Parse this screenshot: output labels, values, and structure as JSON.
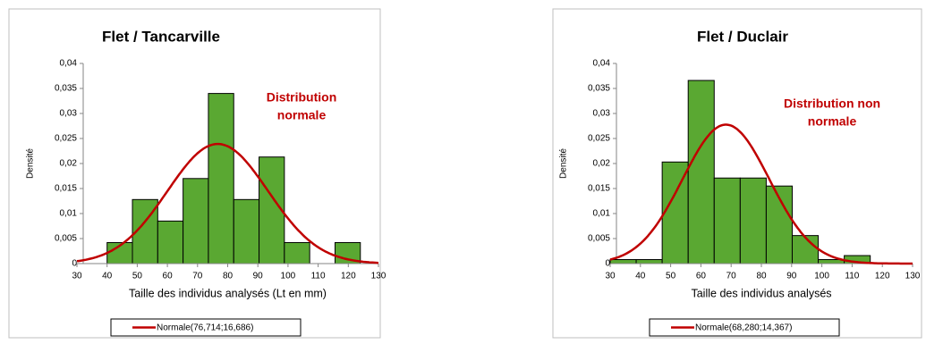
{
  "chart_data": [
    {
      "type": "histogram",
      "title": "Flet / Tancarville",
      "x_label": "Taille des individus analysés (Lt en mm)",
      "y_label": "Densité",
      "bins": [
        40,
        48.4,
        56.8,
        65.2,
        73.6,
        82,
        90.4,
        98.8,
        107.2,
        115.6,
        124
      ],
      "values": [
        0.0042,
        0.0128,
        0.0085,
        0.017,
        0.034,
        0.0128,
        0.0213,
        0.0042,
        0,
        0.0042
      ],
      "color": "#5aa832",
      "normal": {
        "name": "Normale(76,714;16,686)",
        "mean": 76.714,
        "sd": 16.686,
        "color": "#c00000"
      },
      "annotation": [
        "Distribution",
        "normale"
      ],
      "xlim": [
        30,
        130
      ],
      "xticks": [
        30,
        40,
        50,
        60,
        70,
        80,
        90,
        100,
        110,
        120,
        130
      ],
      "ylim": [
        0,
        0.04
      ],
      "yticks": [
        0,
        {
          "value": 0.005,
          "label": "0,005"
        },
        {
          "value": 0.01,
          "label": "0,01"
        },
        {
          "value": 0.015,
          "label": "0,015"
        },
        {
          "value": 0.02,
          "label": "0,02"
        },
        {
          "value": 0.025,
          "label": "0,025"
        },
        {
          "value": 0.03,
          "label": "0,03"
        },
        {
          "value": 0.035,
          "label": "0,035"
        },
        {
          "value": 0.04,
          "label": "0,04"
        }
      ]
    },
    {
      "type": "histogram",
      "title": "Flet / Duclair",
      "x_label": "Taille des individus analysés",
      "y_label": "Densité",
      "bins": [
        30,
        38.6,
        47.2,
        55.8,
        64.4,
        73,
        81.6,
        90.2,
        98.8,
        107.4,
        116
      ],
      "values": [
        0.0008,
        0.0008,
        0.0203,
        0.0366,
        0.0171,
        0.0171,
        0.0155,
        0.0056,
        0.0008,
        0.0016
      ],
      "color": "#5aa832",
      "normal": {
        "name": "Normale(68,280;14,367)",
        "mean": 68.28,
        "sd": 14.367,
        "color": "#c00000"
      },
      "annotation": [
        "Distribution non",
        "normale"
      ],
      "xlim": [
        30,
        130
      ],
      "xticks": [
        30,
        40,
        50,
        60,
        70,
        80,
        90,
        100,
        110,
        120,
        130
      ],
      "ylim": [
        0,
        0.04
      ],
      "yticks": [
        0,
        {
          "value": 0.005,
          "label": "0,005"
        },
        {
          "value": 0.01,
          "label": "0,01"
        },
        {
          "value": 0.015,
          "label": "0,015"
        },
        {
          "value": 0.02,
          "label": "0,02"
        },
        {
          "value": 0.025,
          "label": "0,025"
        },
        {
          "value": 0.03,
          "label": "0,03"
        },
        {
          "value": 0.035,
          "label": "0,035"
        },
        {
          "value": 0.04,
          "label": "0,04"
        }
      ]
    }
  ]
}
